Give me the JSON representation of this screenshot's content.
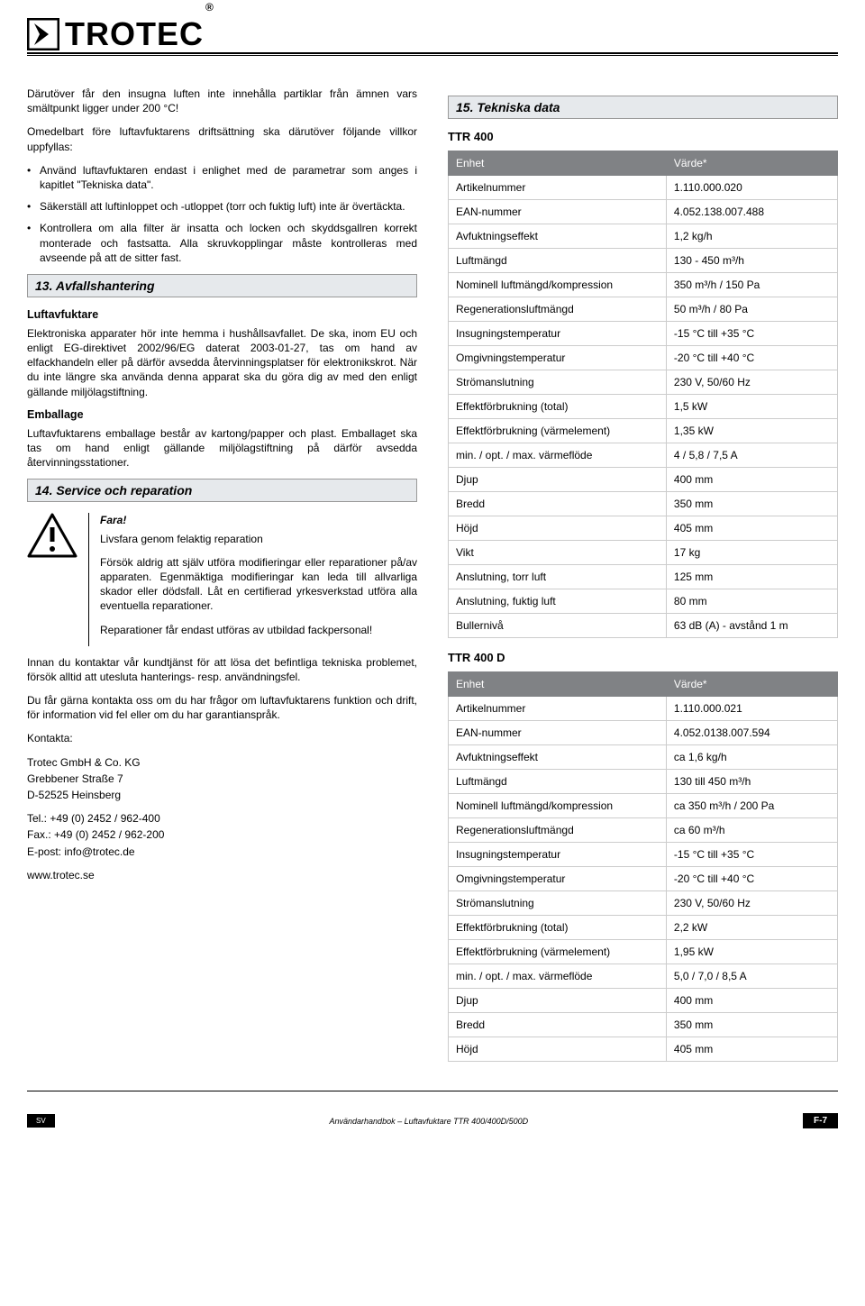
{
  "brand": {
    "name": "TROTEC",
    "registered": "®"
  },
  "left": {
    "intro1": "Därutöver får den insugna luften inte innehålla partiklar från ämnen vars smältpunkt ligger under 200 °C!",
    "intro2": "Omedelbart före luftavfuktarens driftsättning ska därutöver följande villkor uppfyllas:",
    "bullets_a": [
      "Använd luftavfuktaren endast i enlighet med de parametrar som anges i kapitlet \"Tekniska data\".",
      "Säkerställ att luftinloppet och -utloppet (torr och fuktig luft) inte är övertäckta.",
      "Kontrollera om alla filter är insatta och locken och skyddsgallren korrekt monterade och fastsatta. Alla skruvkopplingar måste kontrolleras med avseende på att de sitter fast."
    ],
    "s13_title": "13. Avfallshantering",
    "s13_h1": "Luftavfuktare",
    "s13_p1": "Elektroniska apparater hör inte hemma i hushållsavfallet. De ska, inom EU och enligt EG-direktivet 2002/96/EG daterat 2003-01-27, tas om hand av elfackhandeln eller på därför avsedda återvinningsplatser för elektronikskrot. När du inte längre ska använda denna apparat ska du göra dig av med den enligt gällande miljölagstiftning.",
    "s13_h2": "Emballage",
    "s13_p2": "Luftavfuktarens emballage består av kartong/papper och plast. Emballaget ska tas om hand enligt gällande miljölagstiftning på därför avsedda återvinningsstationer.",
    "s14_title": "14. Service och reparation",
    "warn_title": "Fara!",
    "warn_sub": "Livsfara genom felaktig reparation",
    "warn_p1": "Försök aldrig att själv utföra modifieringar eller reparationer på/av apparaten. Egenmäktiga modifieringar kan leda till allvarliga skador eller dödsfall. Låt en certifierad yrkesverkstad utföra alla eventuella reparationer.",
    "warn_p2": "Reparationer får endast utföras av utbildad fackpersonal!",
    "after1": "Innan du kontaktar vår kundtjänst för att lösa det befintliga tekniska problemet, försök alltid att utesluta hanterings- resp. användningsfel.",
    "after2": "Du får gärna kontakta oss om du har frågor om luftavfuktarens funktion och drift, för information vid fel eller om du har garantianspråk.",
    "contact_label": "Kontakta:",
    "contact_name": "Trotec GmbH & Co. KG",
    "contact_street": "Grebbener Straße 7",
    "contact_city": "D-52525 Heinsberg",
    "contact_tel": "Tel.: +49 (0) 2452 / 962-400",
    "contact_fax": "Fax.: +49 (0) 2452 / 962-200",
    "contact_email": "E-post: info@trotec.de",
    "contact_web": "www.trotec.se"
  },
  "right": {
    "s15_title": "15. Tekniska data",
    "model_a": "TTR 400",
    "model_b": "TTR 400 D",
    "th1": "Enhet",
    "th2": "Värde*",
    "table_a": [
      [
        "Artikelnummer",
        "1.110.000.020"
      ],
      [
        "EAN-nummer",
        "4.052.138.007.488"
      ],
      [
        "Avfuktningseffekt",
        "1,2 kg/h"
      ],
      [
        "Luftmängd",
        "130 - 450 m³/h"
      ],
      [
        "Nominell luftmängd/kompression",
        "350 m³/h / 150 Pa"
      ],
      [
        "Regenerationsluftmängd",
        "50 m³/h / 80 Pa"
      ],
      [
        "Insugningstemperatur",
        "-15 °C till +35 °C"
      ],
      [
        "Omgivningstemperatur",
        "-20 °C till +40 °C"
      ],
      [
        "Strömanslutning",
        "230 V, 50/60 Hz"
      ],
      [
        "Effektförbrukning (total)",
        "1,5 kW"
      ],
      [
        "Effektförbrukning (värmelement)",
        "1,35 kW"
      ],
      [
        "min. / opt. / max. värmeflöde",
        "4 / 5,8 / 7,5 A"
      ],
      [
        "Djup",
        "400 mm"
      ],
      [
        "Bredd",
        "350 mm"
      ],
      [
        "Höjd",
        "405 mm"
      ],
      [
        "Vikt",
        "17 kg"
      ],
      [
        "Anslutning, torr luft",
        "125 mm"
      ],
      [
        "Anslutning, fuktig luft",
        "80 mm"
      ],
      [
        "Bullernivå",
        "63 dB (A) - avstånd 1 m"
      ]
    ],
    "table_b": [
      [
        "Artikelnummer",
        "1.110.000.021"
      ],
      [
        "EAN-nummer",
        "4.052.0138.007.594"
      ],
      [
        "Avfuktningseffekt",
        "ca 1,6 kg/h"
      ],
      [
        "Luftmängd",
        "130 till 450 m³/h"
      ],
      [
        "Nominell luftmängd/kompression",
        "ca 350 m³/h / 200 Pa"
      ],
      [
        "Regenerationsluftmängd",
        "ca 60 m³/h"
      ],
      [
        "Insugningstemperatur",
        "-15 °C till +35 °C"
      ],
      [
        "Omgivningstemperatur",
        "-20 °C till +40 °C"
      ],
      [
        "Strömanslutning",
        "230 V, 50/60 Hz"
      ],
      [
        "Effektförbrukning (total)",
        "2,2 kW"
      ],
      [
        "Effektförbrukning (värmelement)",
        "1,95 kW"
      ],
      [
        "min. / opt. / max. värmeflöde",
        "5,0 / 7,0 / 8,5 A"
      ],
      [
        "Djup",
        "400 mm"
      ],
      [
        "Bredd",
        "350 mm"
      ],
      [
        "Höjd",
        "405 mm"
      ]
    ]
  },
  "footer": {
    "lang": "SV",
    "title": "Användarhandbok – Luftavfuktare TTR 400/400D/500D",
    "page": "F-7"
  }
}
